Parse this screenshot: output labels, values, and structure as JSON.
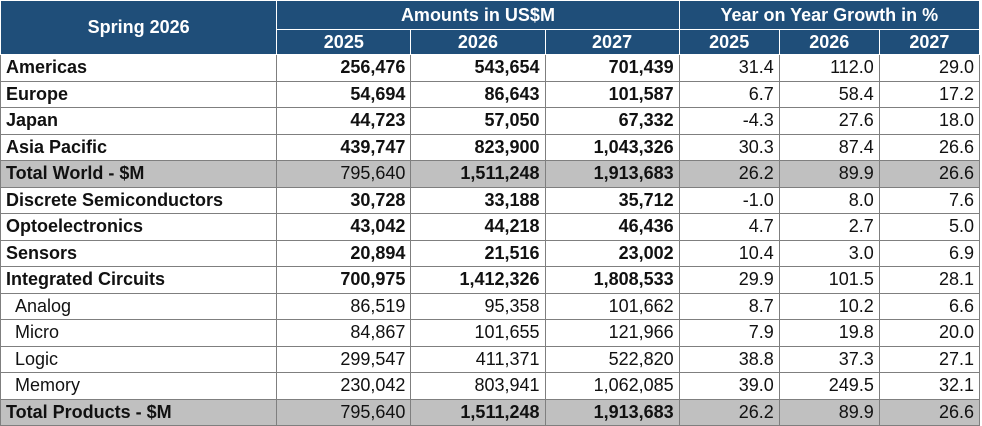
{
  "header": {
    "title": "Spring 2026",
    "amounts_group": "Amounts in US$M",
    "growth_group": "Year on Year Growth in %",
    "years": [
      "2025",
      "2026",
      "2027"
    ]
  },
  "rows": [
    {
      "label": "Americas",
      "a25": "256,476",
      "a26": "543,654",
      "a27": "701,439",
      "g25": "31.4",
      "g26": "112.0",
      "g27": "29.0"
    },
    {
      "label": "Europe",
      "a25": "54,694",
      "a26": "86,643",
      "a27": "101,587",
      "g25": "6.7",
      "g26": "58.4",
      "g27": "17.2"
    },
    {
      "label": "Japan",
      "a25": "44,723",
      "a26": "57,050",
      "a27": "67,332",
      "g25": "-4.3",
      "g26": "27.6",
      "g27": "18.0"
    },
    {
      "label": "Asia Pacific",
      "a25": "439,747",
      "a26": "823,900",
      "a27": "1,043,326",
      "g25": "30.3",
      "g26": "87.4",
      "g27": "26.6"
    },
    {
      "label": "Total World - $M",
      "a25": "795,640",
      "a26": "1,511,248",
      "a27": "1,913,683",
      "g25": "26.2",
      "g26": "89.9",
      "g27": "26.6"
    },
    {
      "label": "Discrete Semiconductors",
      "a25": "30,728",
      "a26": "33,188",
      "a27": "35,712",
      "g25": "-1.0",
      "g26": "8.0",
      "g27": "7.6"
    },
    {
      "label": "Optoelectronics",
      "a25": "43,042",
      "a26": "44,218",
      "a27": "46,436",
      "g25": "4.7",
      "g26": "2.7",
      "g27": "5.0"
    },
    {
      "label": "Sensors",
      "a25": "20,894",
      "a26": "21,516",
      "a27": "23,002",
      "g25": "10.4",
      "g26": "3.0",
      "g27": "6.9"
    },
    {
      "label": "Integrated Circuits",
      "a25": "700,975",
      "a26": "1,412,326",
      "a27": "1,808,533",
      "g25": "29.9",
      "g26": "101.5",
      "g27": "28.1"
    },
    {
      "label": "Analog",
      "a25": "86,519",
      "a26": "95,358",
      "a27": "101,662",
      "g25": "8.7",
      "g26": "10.2",
      "g27": "6.6"
    },
    {
      "label": "Micro",
      "a25": "84,867",
      "a26": "101,655",
      "a27": "121,966",
      "g25": "7.9",
      "g26": "19.8",
      "g27": "20.0"
    },
    {
      "label": "Logic",
      "a25": "299,547",
      "a26": "411,371",
      "a27": "522,820",
      "g25": "38.8",
      "g26": "37.3",
      "g27": "27.1"
    },
    {
      "label": "Memory",
      "a25": "230,042",
      "a26": "803,941",
      "a27": "1,062,085",
      "g25": "39.0",
      "g26": "249.5",
      "g27": "32.1"
    },
    {
      "label": "Total Products - $M",
      "a25": "795,640",
      "a26": "1,511,248",
      "a27": "1,913,683",
      "g25": "26.2",
      "g26": "89.9",
      "g27": "26.6"
    }
  ],
  "colors": {
    "header_bg": "#1f4e79",
    "total_row_bg": "#c0c0c0"
  }
}
